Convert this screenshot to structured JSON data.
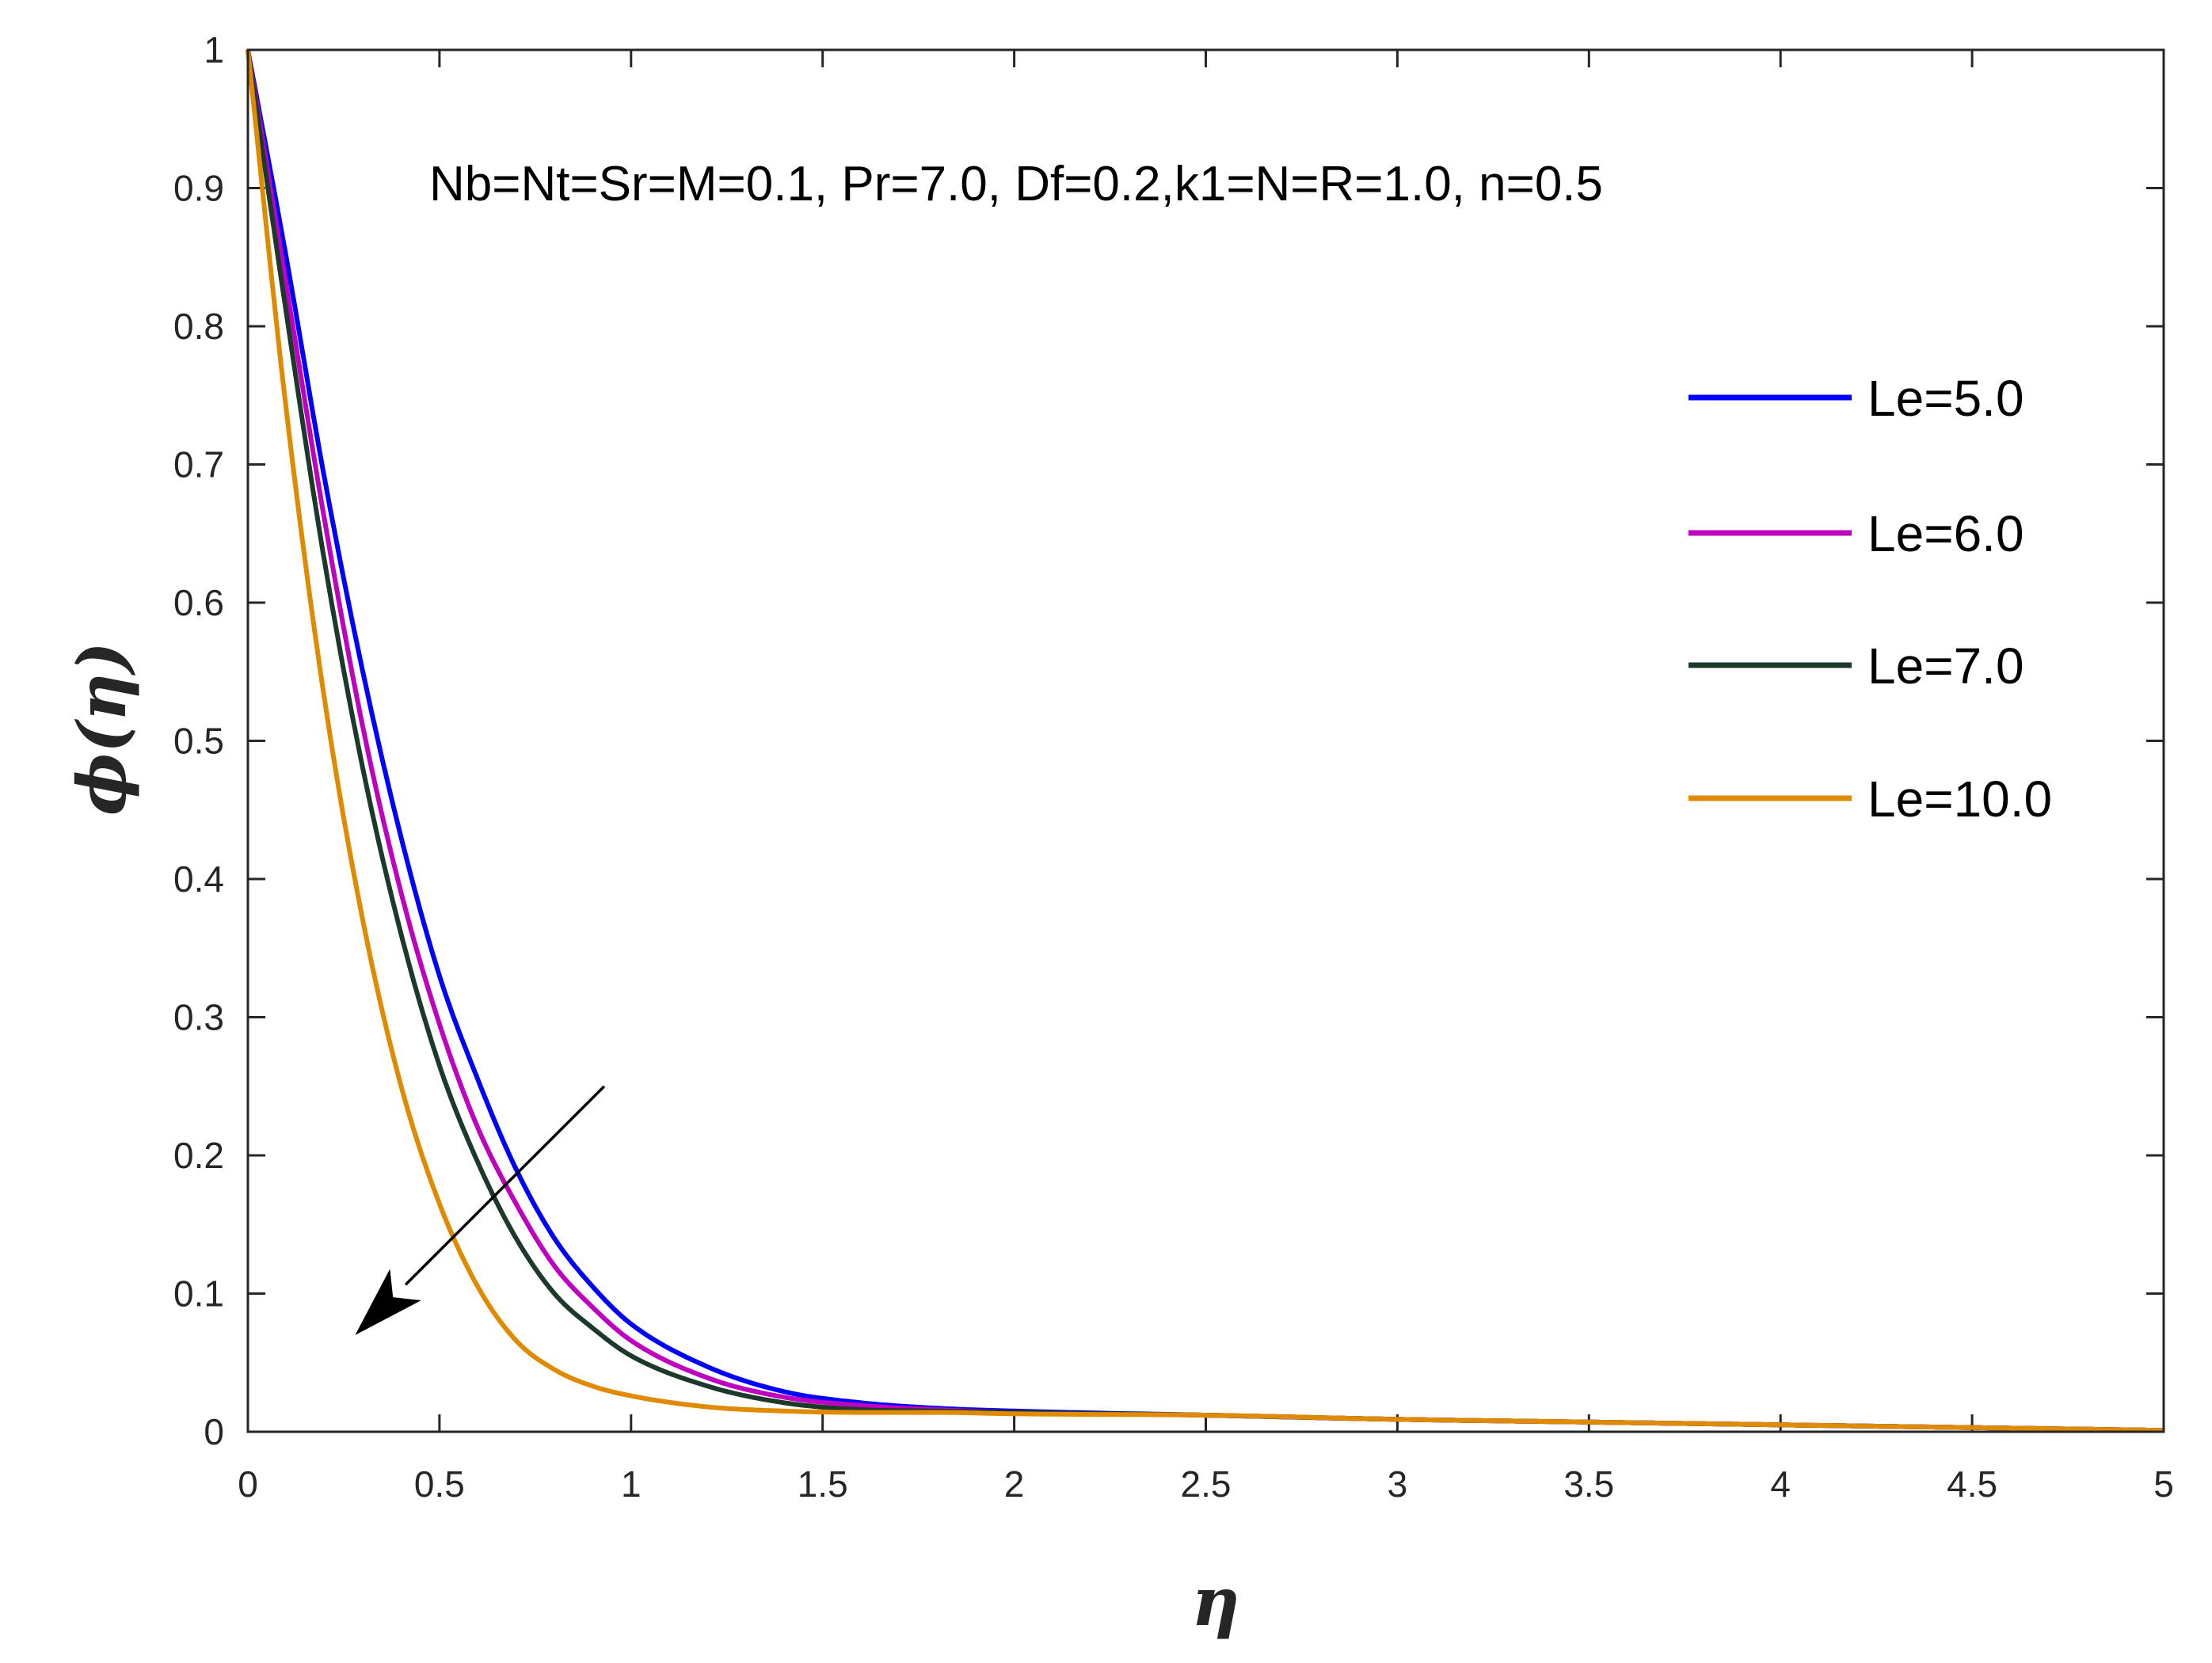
{
  "chart_data": {
    "type": "line",
    "title": "",
    "annotation": "Nb=Nt=Sr=M=0.1, Pr=7.0, Df=0.2,k1=N=R=1.0, n=0.5",
    "xlabel": "η",
    "ylabel": "ϕ(η)",
    "xlim": [
      0,
      5
    ],
    "ylim": [
      0,
      1
    ],
    "xticks": [
      0,
      0.5,
      1,
      1.5,
      2,
      2.5,
      3,
      3.5,
      4,
      4.5,
      5
    ],
    "yticks": [
      0,
      0.1,
      0.2,
      0.3,
      0.4,
      0.5,
      0.6,
      0.7,
      0.8,
      0.9,
      1
    ],
    "xtick_labels": [
      "0",
      "0.5",
      "1",
      "1.5",
      "2",
      "2.5",
      "3",
      "3.5",
      "4",
      "4.5",
      "5"
    ],
    "ytick_labels": [
      "0",
      "0.1",
      "0.2",
      "0.3",
      "0.4",
      "0.5",
      "0.6",
      "0.7",
      "0.8",
      "0.9",
      "1"
    ],
    "grid": false,
    "legend_position": "right",
    "arrow": {
      "from": [
        0.93,
        0.25
      ],
      "to": [
        0.28,
        0.07
      ],
      "meaning": "increasing Le"
    },
    "x": [
      0,
      0.1,
      0.2,
      0.3,
      0.4,
      0.5,
      0.6,
      0.7,
      0.8,
      0.9,
      1.0,
      1.2,
      1.4,
      1.6,
      1.8,
      2.0,
      2.5,
      3.0,
      3.5,
      4.0,
      4.5,
      5.0
    ],
    "series": [
      {
        "name": "Le=5.0",
        "color": "#0000ff",
        "values": [
          1,
          0.85,
          0.69,
          0.55,
          0.43,
          0.33,
          0.255,
          0.19,
          0.14,
          0.105,
          0.078,
          0.047,
          0.029,
          0.021,
          0.017,
          0.015,
          0.012,
          0.009,
          0.007,
          0.005,
          0.003,
          0.001
        ]
      },
      {
        "name": "Le=6.0",
        "color": "#bf00bf",
        "values": [
          1,
          0.83,
          0.66,
          0.51,
          0.39,
          0.295,
          0.22,
          0.165,
          0.12,
          0.09,
          0.066,
          0.039,
          0.025,
          0.019,
          0.016,
          0.014,
          0.012,
          0.009,
          0.007,
          0.005,
          0.003,
          0.001
        ]
      },
      {
        "name": "Le=7.0",
        "color": "#1b3a2a",
        "values": [
          1,
          0.81,
          0.63,
          0.48,
          0.36,
          0.265,
          0.195,
          0.14,
          0.1,
          0.075,
          0.055,
          0.033,
          0.021,
          0.016,
          0.015,
          0.014,
          0.012,
          0.009,
          0.007,
          0.005,
          0.003,
          0.001
        ]
      },
      {
        "name": "Le=10.0",
        "color": "#e08a00",
        "values": [
          1,
          0.74,
          0.53,
          0.37,
          0.25,
          0.165,
          0.105,
          0.066,
          0.045,
          0.033,
          0.026,
          0.018,
          0.015,
          0.014,
          0.014,
          0.013,
          0.012,
          0.009,
          0.007,
          0.005,
          0.003,
          0.001
        ]
      }
    ]
  }
}
